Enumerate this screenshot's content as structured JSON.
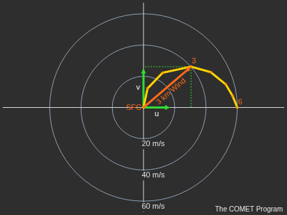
{
  "chart_data": {
    "type": "hodograph",
    "u": [
      0,
      2.6,
      12.2,
      30.4,
      43,
      52.6,
      57,
      60
    ],
    "v": [
      0,
      12.2,
      22.2,
      26.1,
      22.6,
      14.8,
      7.4,
      0
    ],
    "point_labels": [
      "SFC",
      null,
      null,
      "3",
      null,
      null,
      null,
      "6"
    ],
    "color": "#ffd400",
    "xlim": [
      -90,
      90
    ],
    "ylim": [
      -67,
      67
    ],
    "tick_labels": false,
    "rings": [
      {
        "value": 20,
        "label": "20 m/s"
      },
      {
        "value": 40,
        "label": "40 m/s"
      },
      {
        "value": 60,
        "label": "60 m/s"
      }
    ],
    "wind_vector": {
      "label": "3 km Wind",
      "index": 3,
      "color": "#ff6a1a"
    },
    "components": {
      "color": "#33dd33",
      "u": {
        "label": "u",
        "value": 17
      },
      "v": {
        "label": "v",
        "value": 25
      }
    },
    "credit": "The COMET Program"
  }
}
